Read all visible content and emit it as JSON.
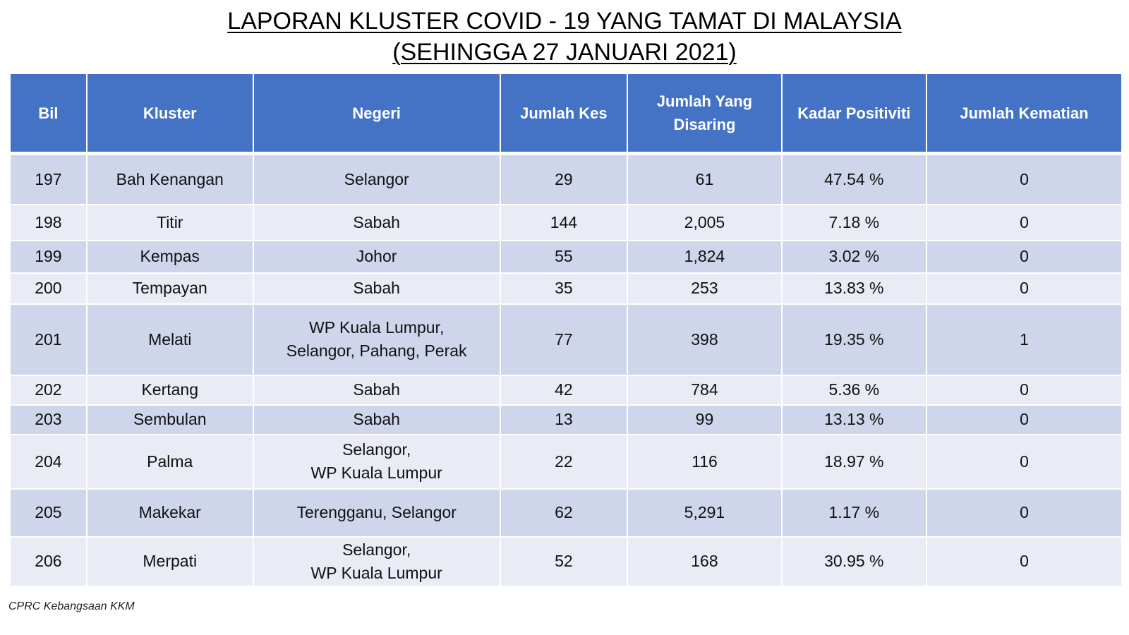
{
  "title": {
    "line1": "LAPORAN KLUSTER COVID - 19 YANG TAMAT DI MALAYSIA",
    "line2": "(SEHINGGA 27 JANUARI 2021)"
  },
  "table": {
    "headers": [
      "Bil",
      "Kluster",
      "Negeri",
      "Jumlah Kes",
      "Jumlah Yang Disaring",
      "Kadar Positiviti",
      "Jumlah Kematian"
    ],
    "rows": [
      {
        "bil": "197",
        "kluster": "Bah Kenangan",
        "negeri": [
          "Selangor"
        ],
        "kes": "29",
        "disaring": "61",
        "positiviti": "47.54 %",
        "kematian": "0"
      },
      {
        "bil": "198",
        "kluster": "Titir",
        "negeri": [
          "Sabah"
        ],
        "kes": "144",
        "disaring": "2,005",
        "positiviti": "7.18 %",
        "kematian": "0"
      },
      {
        "bil": "199",
        "kluster": "Kempas",
        "negeri": [
          "Johor"
        ],
        "kes": "55",
        "disaring": "1,824",
        "positiviti": "3.02 %",
        "kematian": "0"
      },
      {
        "bil": "200",
        "kluster": "Tempayan",
        "negeri": [
          "Sabah"
        ],
        "kes": "35",
        "disaring": "253",
        "positiviti": "13.83 %",
        "kematian": "0"
      },
      {
        "bil": "201",
        "kluster": "Melati",
        "negeri": [
          "WP Kuala Lumpur,",
          "Selangor, Pahang, Perak"
        ],
        "kes": "77",
        "disaring": "398",
        "positiviti": "19.35 %",
        "kematian": "1"
      },
      {
        "bil": "202",
        "kluster": "Kertang",
        "negeri": [
          "Sabah"
        ],
        "kes": "42",
        "disaring": "784",
        "positiviti": "5.36 %",
        "kematian": "0"
      },
      {
        "bil": "203",
        "kluster": "Sembulan",
        "negeri": [
          "Sabah"
        ],
        "kes": "13",
        "disaring": "99",
        "positiviti": "13.13 %",
        "kematian": "0"
      },
      {
        "bil": "204",
        "kluster": "Palma",
        "negeri": [
          "Selangor,",
          "WP Kuala Lumpur"
        ],
        "kes": "22",
        "disaring": "116",
        "positiviti": "18.97 %",
        "kematian": "0"
      },
      {
        "bil": "205",
        "kluster": "Makekar",
        "negeri": [
          "Terengganu, Selangor"
        ],
        "kes": "62",
        "disaring": "5,291",
        "positiviti": "1.17 %",
        "kematian": "0"
      },
      {
        "bil": "206",
        "kluster": "Merpati",
        "negeri": [
          "Selangor,",
          "WP Kuala Lumpur"
        ],
        "kes": "52",
        "disaring": "168",
        "positiviti": "30.95 %",
        "kematian": "0"
      }
    ]
  },
  "footer": {
    "source": "CPRC Kebangsaan KKM"
  },
  "colors": {
    "header_bg": "#4472c4",
    "row_dark": "#cfd5ea",
    "row_light": "#e9ebf5"
  }
}
